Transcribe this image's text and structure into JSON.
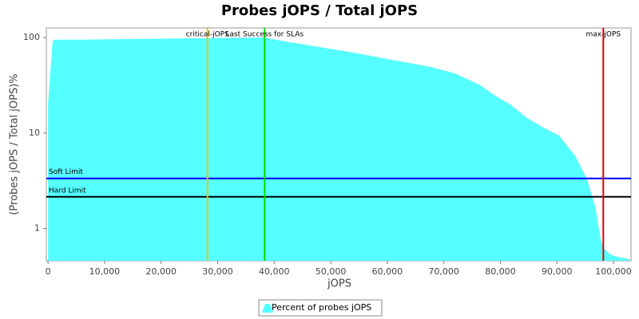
{
  "chart_data": {
    "type": "area",
    "title": "Probes jOPS / Total jOPS",
    "x_label": "jOPS",
    "y_label": "(Probes jOPS / Total jOPS)%",
    "x": [
      0,
      800,
      1000,
      5650,
      38100,
      42400,
      53700,
      67800,
      72000,
      76300,
      79100,
      81900,
      84700,
      87600,
      90400,
      93200,
      95300,
      96800,
      97700,
      98400,
      99600,
      101000,
      102800
    ],
    "series": [
      {
        "name": "Percent of probes jOPS",
        "color": "#55ffff",
        "values": [
          20,
          90,
          95,
          95,
          100,
          90,
          70,
          49,
          42,
          32,
          24.6,
          19.6,
          14.4,
          11.4,
          9.4,
          5.8,
          3.3,
          1.68,
          0.78,
          0.61,
          0.53,
          0.5,
          0.48
        ]
      }
    ],
    "xlim": [
      -300,
      103100
    ],
    "xticks": [
      0,
      {
        "value": 10000,
        "label": "10,000"
      },
      {
        "value": 20000,
        "label": "20,000"
      },
      {
        "value": 30000,
        "label": "30,000"
      },
      {
        "value": 40000,
        "label": "40,000"
      },
      {
        "value": 50000,
        "label": "50,000"
      },
      {
        "value": 60000,
        "label": "60,000"
      },
      {
        "value": 70000,
        "label": "70,000"
      },
      {
        "value": 80000,
        "label": "80,000"
      },
      {
        "value": 90000,
        "label": "90,000"
      },
      {
        "value": 100000,
        "label": "100,000"
      }
    ],
    "ylim": [
      0.46,
      126
    ],
    "yticks": [
      1,
      10,
      100
    ],
    "y_log": true,
    "vlines": [
      {
        "label": "critical-jOPS",
        "value": 28200,
        "color": "#f0c000"
      },
      {
        "label": "Last Success for SLAs",
        "value": 38300,
        "color": "#00dd00"
      },
      {
        "label": "max-jOPS",
        "value": 98200,
        "color": "#dd0000"
      }
    ],
    "hlines": [
      {
        "label": "Soft Limit",
        "value": 3.35,
        "color": "#0000ee"
      },
      {
        "label": "Hard Limit",
        "value": 2.15,
        "color": "#000000"
      }
    ]
  }
}
